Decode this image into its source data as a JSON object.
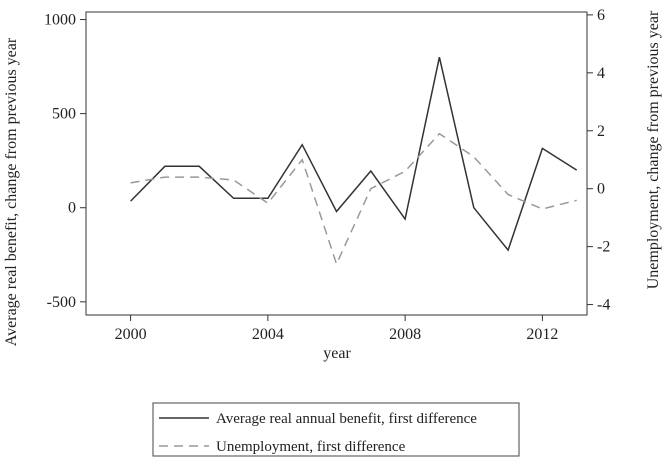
{
  "chart_data": {
    "type": "line",
    "xlabel": "year",
    "ylabel_left": "Average real benefit, change from previous year",
    "ylabel_right": "Unemployment, change from previous year",
    "xlim": [
      1998.7,
      2013.3
    ],
    "ylim_left": [
      -570,
      1040
    ],
    "ylim_right": [
      -4.36,
      6.1
    ],
    "x_ticks": [
      2000,
      2004,
      2008,
      2012
    ],
    "y_ticks_left": [
      -500,
      0,
      500,
      1000
    ],
    "y_ticks_right": [
      -4,
      -2,
      0,
      2,
      4,
      6
    ],
    "grid": false,
    "legend_position": "bottom",
    "series": [
      {
        "name": "Average real annual benefit, first difference",
        "axis": "left",
        "style": "solid",
        "color": "#333333",
        "x": [
          2000,
          2001,
          2002,
          2003,
          2004,
          2005,
          2006,
          2007,
          2008,
          2009,
          2010,
          2011,
          2012,
          2013
        ],
        "values": [
          35,
          220,
          220,
          50,
          50,
          335,
          -20,
          195,
          -60,
          800,
          0,
          -225,
          315,
          200
        ]
      },
      {
        "name": "Unemployment, first difference",
        "axis": "right",
        "style": "dashed",
        "color": "#999999",
        "x": [
          2000,
          2001,
          2002,
          2003,
          2004,
          2005,
          2006,
          2007,
          2008,
          2009,
          2010,
          2011,
          2012,
          2013
        ],
        "values": [
          0.2,
          0.4,
          0.4,
          0.3,
          -0.5,
          1.0,
          -2.6,
          0.0,
          0.6,
          1.9,
          1.1,
          -0.2,
          -0.7,
          -0.4
        ]
      }
    ]
  }
}
